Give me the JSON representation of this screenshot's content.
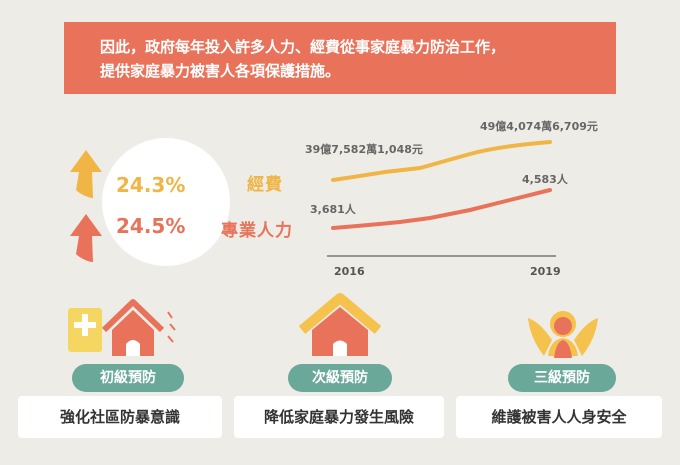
{
  "banner": {
    "line1": "因此，政府每年投入許多人力、經費從事家庭暴力防治工作，",
    "line2": "提供家庭暴力被害人各項保護措施。"
  },
  "stats": {
    "funding_pct": "24.3%",
    "staff_pct": "24.5%",
    "funding_label": "經費",
    "staff_label": "專業人力",
    "funding_start": "39億7,582萬1,048元",
    "funding_end": "49億4,074萬6,709元",
    "staff_start": "3,681人",
    "staff_end": "4,583人",
    "year_start": "2016",
    "year_end": "2019"
  },
  "colors": {
    "banner": "#e9735a",
    "funding": "#f0b545",
    "staff": "#e9735a",
    "pill": "#6aa89a"
  },
  "prevention": [
    {
      "level": "初級預防",
      "desc": "強化社區防暴意識",
      "icon": "house-plus-icon"
    },
    {
      "level": "次級預防",
      "desc": "降低家庭暴力發生風險",
      "icon": "house-roof-icon"
    },
    {
      "level": "三級預防",
      "desc": "維護被害人人身安全",
      "icon": "embrace-icon"
    }
  ]
}
